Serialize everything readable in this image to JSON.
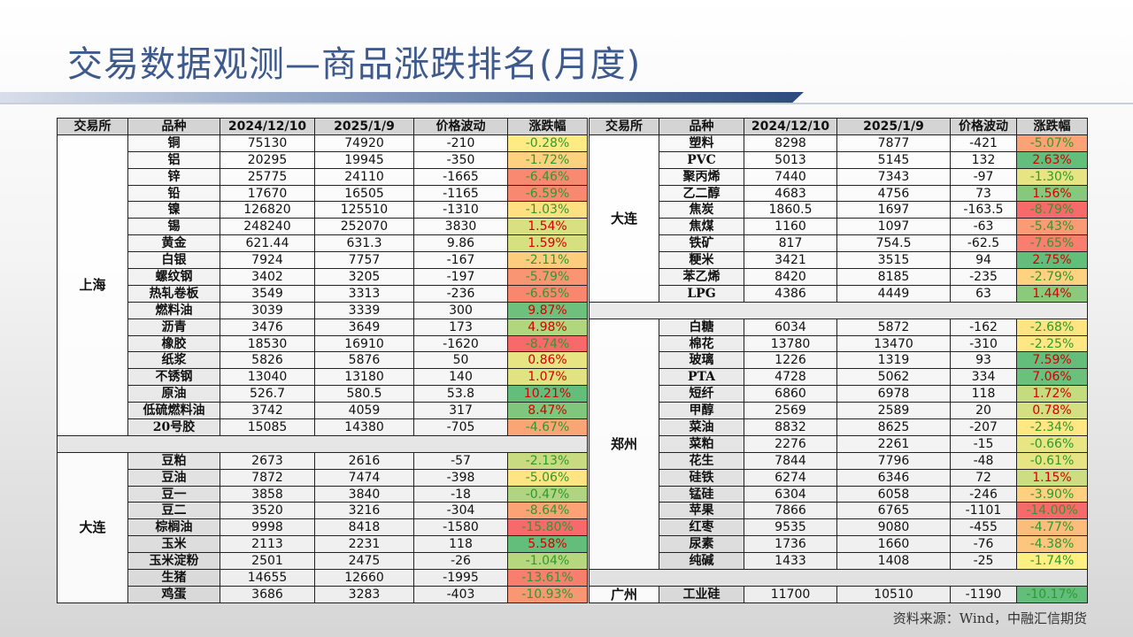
{
  "title": "交易数据观测—商品涨跌排名(月度)",
  "headers": [
    "交易所",
    "品种",
    "2024/12/10",
    "2025/1/9",
    "价格波动",
    "涨跌幅"
  ],
  "source": "资料来源：Wind，中融汇信期货",
  "left": [
    {
      "exchange": "上海",
      "rows": [
        [
          "铜",
          "75130",
          "74920",
          "-210",
          "-0.28%",
          "#ffeb84"
        ],
        [
          "铝",
          "20295",
          "19945",
          "-350",
          "-1.72%",
          "#fdd17f"
        ],
        [
          "锌",
          "25775",
          "24110",
          "-1665",
          "-6.46%",
          "#f98a71"
        ],
        [
          "铅",
          "17670",
          "16505",
          "-1165",
          "-6.59%",
          "#f98870"
        ],
        [
          "镍",
          "126820",
          "125510",
          "-1310",
          "-1.03%",
          "#fee082"
        ],
        [
          "锡",
          "248240",
          "252070",
          "3830",
          "1.54%",
          "#d8e081"
        ],
        [
          "黄金",
          "621.44",
          "631.3",
          "9.86",
          "1.59%",
          "#d6e081"
        ],
        [
          "白银",
          "7924",
          "7757",
          "-167",
          "-2.11%",
          "#fdcd7e"
        ],
        [
          "螺纹钢",
          "3402",
          "3205",
          "-197",
          "-5.79%",
          "#fa9573"
        ],
        [
          "热轧卷板",
          "3549",
          "3313",
          "-236",
          "-6.65%",
          "#f98770"
        ],
        [
          "燃料油",
          "3039",
          "3339",
          "300",
          "9.87%",
          "#6ec17c"
        ],
        [
          "沥青",
          "3476",
          "3649",
          "173",
          "4.98%",
          "#b0d67f"
        ],
        [
          "橡胶",
          "18530",
          "16910",
          "-1620",
          "-8.74%",
          "#f8696b"
        ],
        [
          "纸浆",
          "5826",
          "5876",
          "50",
          "0.86%",
          "#e6e483"
        ],
        [
          "不锈钢",
          "13040",
          "13180",
          "140",
          "1.07%",
          "#e1e383"
        ],
        [
          "原油",
          "526.7",
          "580.5",
          "53.8",
          "10.21%",
          "#63be7b"
        ],
        [
          "低硫燃料油",
          "3742",
          "4059",
          "317",
          "8.47%",
          "#80c67d"
        ],
        [
          "20号胶",
          "15085",
          "14380",
          "-705",
          "-4.67%",
          "#fba576"
        ]
      ]
    },
    {
      "blank": true
    },
    {
      "exchange": "大连",
      "rows": [
        [
          "豆粕",
          "2673",
          "2616",
          "-57",
          "-2.13%",
          "#c9db80"
        ],
        [
          "豆油",
          "7872",
          "7474",
          "-398",
          "-5.06%",
          "#ffe483"
        ],
        [
          "豆一",
          "3858",
          "3840",
          "-18",
          "-0.47%",
          "#b0d47f"
        ],
        [
          "豆二",
          "3520",
          "3216",
          "-304",
          "-8.64%",
          "#fba276"
        ],
        [
          "棕榈油",
          "9998",
          "8418",
          "-1580",
          "-15.80%",
          "#f8696b"
        ],
        [
          "玉米",
          "2113",
          "2231",
          "118",
          "5.58%",
          "#63be7b"
        ],
        [
          "玉米淀粉",
          "2501",
          "2475",
          "-26",
          "-1.04%",
          "#b7d680"
        ],
        [
          "生猪",
          "14655",
          "12660",
          "-1995",
          "-13.61%",
          "#f87e6e"
        ],
        [
          "鸡蛋",
          "3686",
          "3283",
          "-403",
          "-10.93%",
          "#f99673"
        ]
      ]
    }
  ],
  "right": [
    {
      "exchange": "大连",
      "rows": [
        [
          "塑料",
          "8298",
          "7877",
          "-421",
          "-5.07%",
          "#fba276"
        ],
        [
          "PVC",
          "5013",
          "5145",
          "132",
          "2.63%",
          "#63be7b"
        ],
        [
          "聚丙烯",
          "7440",
          "7343",
          "-97",
          "-1.30%",
          "#e6e483"
        ],
        [
          "乙二醇",
          "4683",
          "4756",
          "73",
          "1.56%",
          "#86c87d"
        ],
        [
          "焦炭",
          "1860.5",
          "1697",
          "-163.5",
          "-8.79%",
          "#f8696b"
        ],
        [
          "焦煤",
          "1160",
          "1097",
          "-63",
          "-5.43%",
          "#fa9b75"
        ],
        [
          "铁矿",
          "817",
          "754.5",
          "-62.5",
          "-7.65%",
          "#f97e6f"
        ],
        [
          "粳米",
          "3421",
          "3515",
          "94",
          "2.75%",
          "#63be7b"
        ],
        [
          "苯乙烯",
          "8420",
          "8185",
          "-235",
          "-2.79%",
          "#fed280"
        ],
        [
          "LPG",
          "4386",
          "4449",
          "63",
          "1.44%",
          "#8bc97d"
        ]
      ]
    },
    {
      "blank": true
    },
    {
      "exchange": "郑州",
      "rows": [
        [
          "白糖",
          "6034",
          "5872",
          "-162",
          "-2.68%",
          "#fee482"
        ],
        [
          "棉花",
          "13780",
          "13470",
          "-310",
          "-2.25%",
          "#ffe884"
        ],
        [
          "玻璃",
          "1226",
          "1319",
          "93",
          "7.59%",
          "#63be7b"
        ],
        [
          "PTA",
          "4728",
          "5062",
          "334",
          "7.06%",
          "#6bc07c"
        ],
        [
          "短纤",
          "6860",
          "6978",
          "118",
          "1.72%",
          "#c4db80"
        ],
        [
          "甲醇",
          "2569",
          "2589",
          "20",
          "0.78%",
          "#d3df81"
        ],
        [
          "菜油",
          "8832",
          "8625",
          "-207",
          "-2.34%",
          "#ffe784"
        ],
        [
          "菜粕",
          "2276",
          "2261",
          "-15",
          "-0.66%",
          "#e8e583"
        ],
        [
          "花生",
          "7844",
          "7796",
          "-48",
          "-0.61%",
          "#e7e583"
        ],
        [
          "硅铁",
          "6274",
          "6346",
          "72",
          "1.15%",
          "#cddd81"
        ],
        [
          "锰硅",
          "6304",
          "6058",
          "-246",
          "-3.90%",
          "#fdd17f"
        ],
        [
          "苹果",
          "7866",
          "6765",
          "-1101",
          "-14.00%",
          "#f8696b"
        ],
        [
          "红枣",
          "9535",
          "9080",
          "-455",
          "-4.77%",
          "#fcbc7b"
        ],
        [
          "尿素",
          "1736",
          "1660",
          "-76",
          "-4.38%",
          "#fdc57d"
        ],
        [
          "纯碱",
          "1433",
          "1408",
          "-25",
          "-1.74%",
          "#fff084"
        ]
      ]
    },
    {
      "blank": true
    },
    {
      "exchange": "广州",
      "rows": [
        [
          "工业硅",
          "11700",
          "10510",
          "-1190",
          "-10.17%",
          "#63be7b"
        ]
      ]
    }
  ]
}
